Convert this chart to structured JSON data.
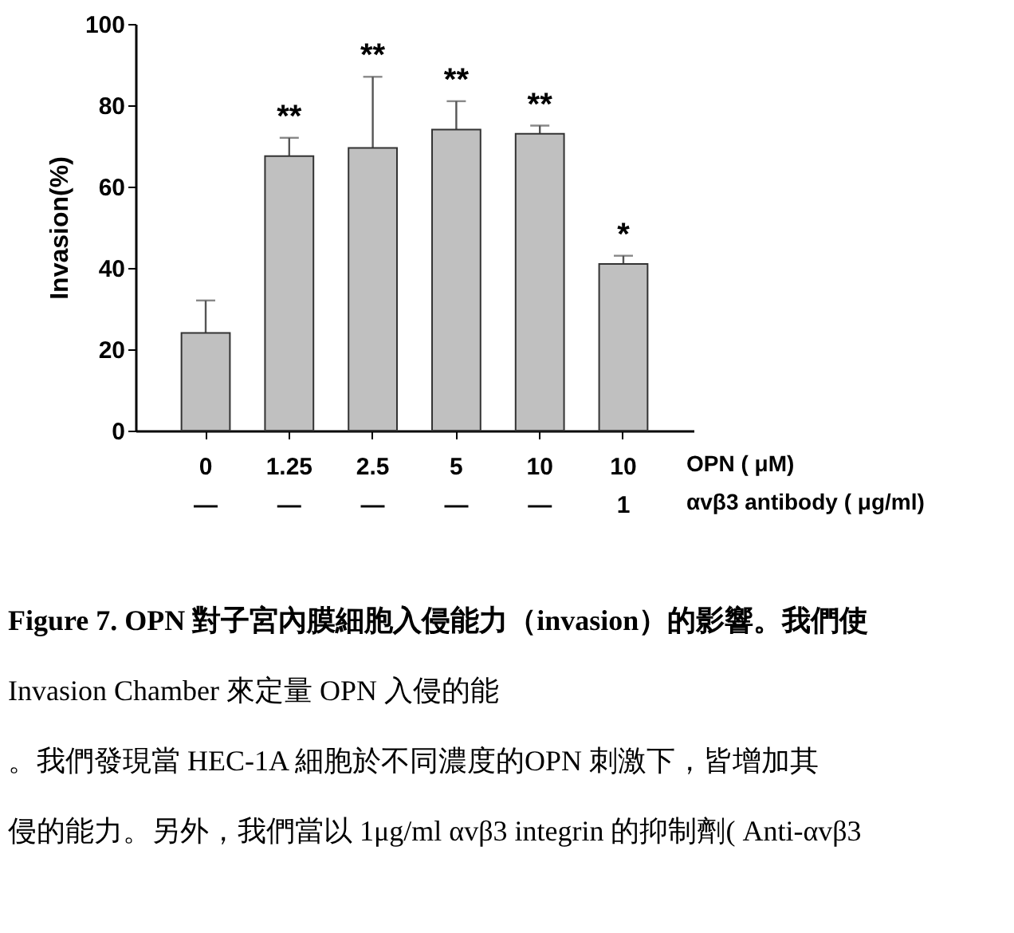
{
  "chart_data": {
    "type": "bar",
    "categories": [
      "0\n—",
      "1.25\n—",
      "2.5\n—",
      "5\n—",
      "10\n—",
      "10\n1"
    ],
    "values": [
      24,
      67.5,
      69.5,
      74,
      73,
      41
    ],
    "errors": [
      8,
      4.5,
      17.5,
      7,
      2,
      2
    ],
    "color": "#c0c0c0",
    "ylabel": "Invasion(%)",
    "xlabel": "OPN ( μM)\nαvβ3 antibody ( μg/ml)",
    "ylim": [
      0,
      100
    ],
    "yticks": [
      0,
      20,
      40,
      60,
      80,
      100
    ],
    "grid": false,
    "annotations": [
      {
        "text": "**",
        "x": "1.25\n—",
        "y": 72
      },
      {
        "text": "**",
        "x": "2.5\n—",
        "y": 87
      },
      {
        "text": "**",
        "x": "5\n—",
        "y": 81
      },
      {
        "text": "**",
        "x": "10\n—",
        "y": 75
      },
      {
        "text": "*",
        "x": "10\n1",
        "y": 43
      },
      "Figure 7. OPN 對子宮內膜細胞入侵能力（invasion）的影響。我們使",
      "Invasion Chamber 來定量 OPN 入侵的能",
      "。我們發現當 HEC-1A 細胞於不同濃度的OPN 刺激下，皆增加其",
      "侵的能力。另外，我們當以 1μg/ml αvβ3 integrin 的抑制劑( Anti-αvβ3"
    ]
  }
}
